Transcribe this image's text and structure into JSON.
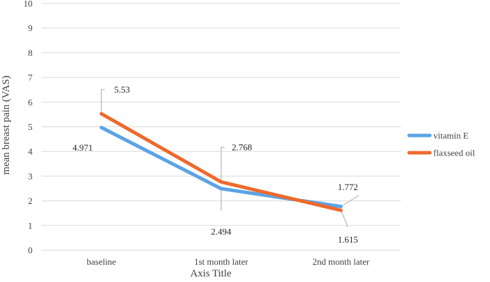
{
  "chart_data": {
    "type": "line",
    "categories": [
      "baseline",
      "1st month later",
      "2nd month later"
    ],
    "series": [
      {
        "name": "vitamin E",
        "values": [
          4.971,
          2.494,
          1.772
        ],
        "labels": [
          "4.971",
          "2.494",
          "1.772"
        ],
        "color": "#5ba3e6"
      },
      {
        "name": "flaxseed oil",
        "values": [
          5.53,
          2.768,
          1.615
        ],
        "labels": [
          "5.53",
          "2.768",
          "1.615"
        ],
        "color": "#ed6a2c"
      }
    ],
    "xlabel": "Axis Title",
    "ylabel": "mean breast pain (VAS)",
    "ylim": [
      0,
      10
    ],
    "yticks": [
      "0",
      "1",
      "2",
      "3",
      "4",
      "5",
      "6",
      "7",
      "8",
      "9",
      "10"
    ],
    "grid": true,
    "legend_position": "right"
  }
}
